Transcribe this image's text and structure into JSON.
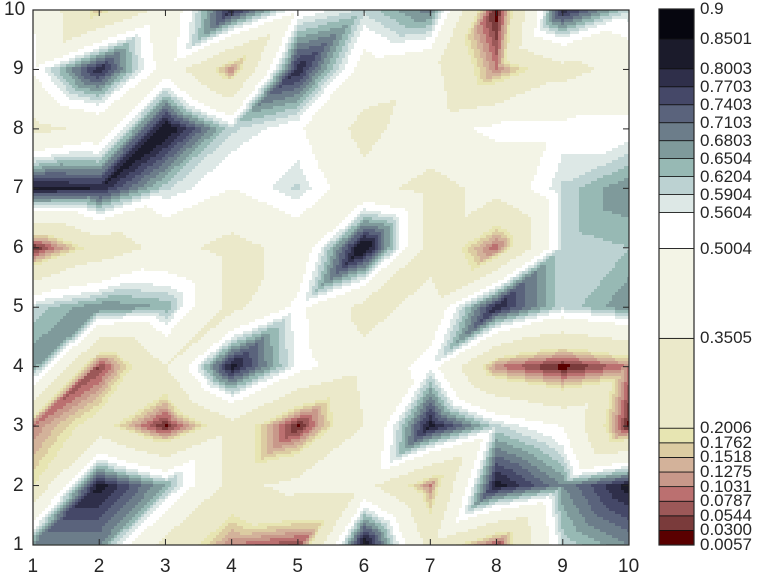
{
  "chart_data": {
    "type": "contour",
    "title": "",
    "xlabel": "",
    "ylabel": "",
    "x": [
      1,
      2,
      3,
      4,
      5,
      6,
      7,
      8,
      9,
      10
    ],
    "y": [
      1,
      2,
      3,
      4,
      5,
      6,
      7,
      8,
      9,
      10
    ],
    "xlim": [
      1,
      10
    ],
    "ylim": [
      1,
      10
    ],
    "x_ticks": [
      "1",
      "2",
      "3",
      "4",
      "5",
      "6",
      "7",
      "8",
      "9",
      "10"
    ],
    "y_ticks": [
      "1",
      "2",
      "3",
      "4",
      "5",
      "6",
      "7",
      "8",
      "9",
      "10"
    ],
    "z_rows_top_to_bottom": [
      [
        0.5,
        0.15,
        0.4,
        0.8,
        0.52,
        0.6,
        0.7,
        0.01,
        0.8,
        0.6
      ],
      [
        0.52,
        0.8,
        0.45,
        0.1,
        0.8,
        0.45,
        0.4,
        0.1,
        0.3,
        0.4
      ],
      [
        0.3,
        0.4,
        0.85,
        0.6,
        0.52,
        0.3,
        0.45,
        0.53,
        0.53,
        0.53
      ],
      [
        0.82,
        0.8,
        0.6,
        0.5,
        0.6,
        0.4,
        0.3,
        0.4,
        0.6,
        0.68
      ],
      [
        0.02,
        0.25,
        0.4,
        0.3,
        0.4,
        0.86,
        0.3,
        0.08,
        0.6,
        0.62
      ],
      [
        0.6,
        0.68,
        0.65,
        0.3,
        0.53,
        0.3,
        0.4,
        0.8,
        0.6,
        0.68
      ],
      [
        0.68,
        0.05,
        0.35,
        0.82,
        0.55,
        0.4,
        0.55,
        0.1,
        0.01,
        0.1
      ],
      [
        0.1,
        0.25,
        0.02,
        0.3,
        0.02,
        0.35,
        0.82,
        0.6,
        0.5,
        0.02
      ],
      [
        0.2,
        0.82,
        0.65,
        0.3,
        0.4,
        0.4,
        0.1,
        0.82,
        0.68,
        0.82
      ],
      [
        0.68,
        0.68,
        0.3,
        0.1,
        0.05,
        0.85,
        0.3,
        0.05,
        0.6,
        0.68
      ]
    ],
    "levels": [
      0.0057,
      0.03,
      0.0544,
      0.0787,
      0.1031,
      0.1275,
      0.1518,
      0.1762,
      0.2006,
      0.3505,
      0.5004,
      0.5604,
      0.5904,
      0.6204,
      0.6504,
      0.6803,
      0.7103,
      0.7403,
      0.7703,
      0.8003,
      0.8501,
      0.9
    ],
    "level_labels": [
      "0.0057",
      "0.0300",
      "0.0544",
      "0.0787",
      "0.1031",
      "0.1275",
      "0.1518",
      "0.1762",
      "0.2006",
      "0.3505",
      "0.5004",
      "0.5604",
      "0.5904",
      "0.6204",
      "0.6504",
      "0.6803",
      "0.7103",
      "0.7403",
      "0.7703",
      "0.8003",
      "0.8501",
      "0.9"
    ],
    "band_colors": [
      "#5a0000",
      "#7a3b3b",
      "#9c5858",
      "#bb7070",
      "#c8988a",
      "#d3b29a",
      "#dccca2",
      "#e7e5b2",
      "#ebe9ca",
      "#f3f4e6",
      "#ffffff",
      "#dde8e6",
      "#bcd2d2",
      "#97b9b4",
      "#7f9a9b",
      "#6c7d8a",
      "#5a637c",
      "#454868",
      "#2f2f4a",
      "#1b1b2b",
      "#06060f"
    ],
    "colorbar": {
      "position": "right",
      "min": 0.0057,
      "max": 0.9
    }
  }
}
